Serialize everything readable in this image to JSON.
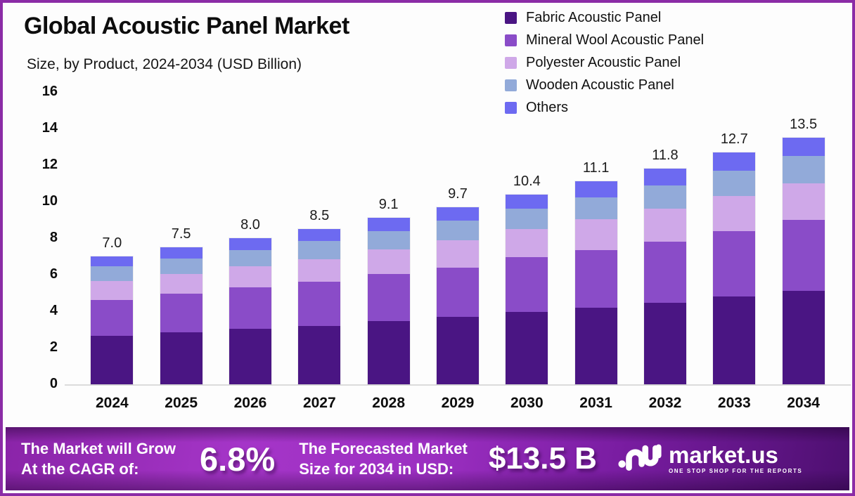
{
  "frame": {
    "border_color": "#8b2ca6"
  },
  "header": {
    "title": "Global Acoustic Panel Market",
    "subtitle": "Size, by Product, 2024-2034 (USD Billion)"
  },
  "chart_data": {
    "type": "bar",
    "stacked": true,
    "title": "Global Acoustic Panel Market Size, by Product, 2024-2034 (USD Billion)",
    "xlabel": "",
    "ylabel": "USD Billion",
    "ylim": [
      0,
      16
    ],
    "y_ticks": [
      0,
      2,
      4,
      6,
      8,
      10,
      12,
      14,
      16
    ],
    "grid": false,
    "legend_position": "top-right",
    "categories": [
      "2024",
      "2025",
      "2026",
      "2027",
      "2028",
      "2029",
      "2030",
      "2031",
      "2032",
      "2033",
      "2034"
    ],
    "totals": [
      "7.0",
      "7.5",
      "8.0",
      "8.5",
      "9.1",
      "9.7",
      "10.4",
      "11.1",
      "11.8",
      "12.7",
      "13.5"
    ],
    "series": [
      {
        "name": "Fabric Acoustic Panel",
        "color": "#4a1583",
        "values": [
          2.65,
          2.85,
          3.05,
          3.2,
          3.45,
          3.7,
          3.95,
          4.2,
          4.45,
          4.8,
          5.1
        ]
      },
      {
        "name": "Mineral Wool Acoustic Panel",
        "color": "#8a4cc8",
        "values": [
          1.95,
          2.1,
          2.25,
          2.4,
          2.6,
          2.7,
          3.0,
          3.15,
          3.35,
          3.6,
          3.9
        ]
      },
      {
        "name": "Polyester Acoustic Panel",
        "color": "#cfa8e8",
        "values": [
          1.05,
          1.1,
          1.15,
          1.25,
          1.35,
          1.5,
          1.55,
          1.7,
          1.8,
          1.9,
          2.0
        ]
      },
      {
        "name": "Wooden Acoustic Panel",
        "color": "#92aad9",
        "values": [
          0.8,
          0.85,
          0.9,
          1.0,
          1.0,
          1.05,
          1.1,
          1.2,
          1.3,
          1.4,
          1.5
        ]
      },
      {
        "name": "Others",
        "color": "#6d6af1",
        "values": [
          0.55,
          0.6,
          0.65,
          0.65,
          0.7,
          0.75,
          0.8,
          0.85,
          0.9,
          1.0,
          1.0
        ]
      }
    ]
  },
  "footer": {
    "cagr_line1": "The Market will Grow",
    "cagr_line2": "At the CAGR of:",
    "cagr_value": "6.8%",
    "forecast_line1": "The Forecasted Market",
    "forecast_line2": "Size for 2034 in USD:",
    "forecast_value": "$13.5 B",
    "brand": {
      "name": "market.us",
      "tagline": "ONE STOP SHOP FOR THE REPORTS"
    }
  }
}
